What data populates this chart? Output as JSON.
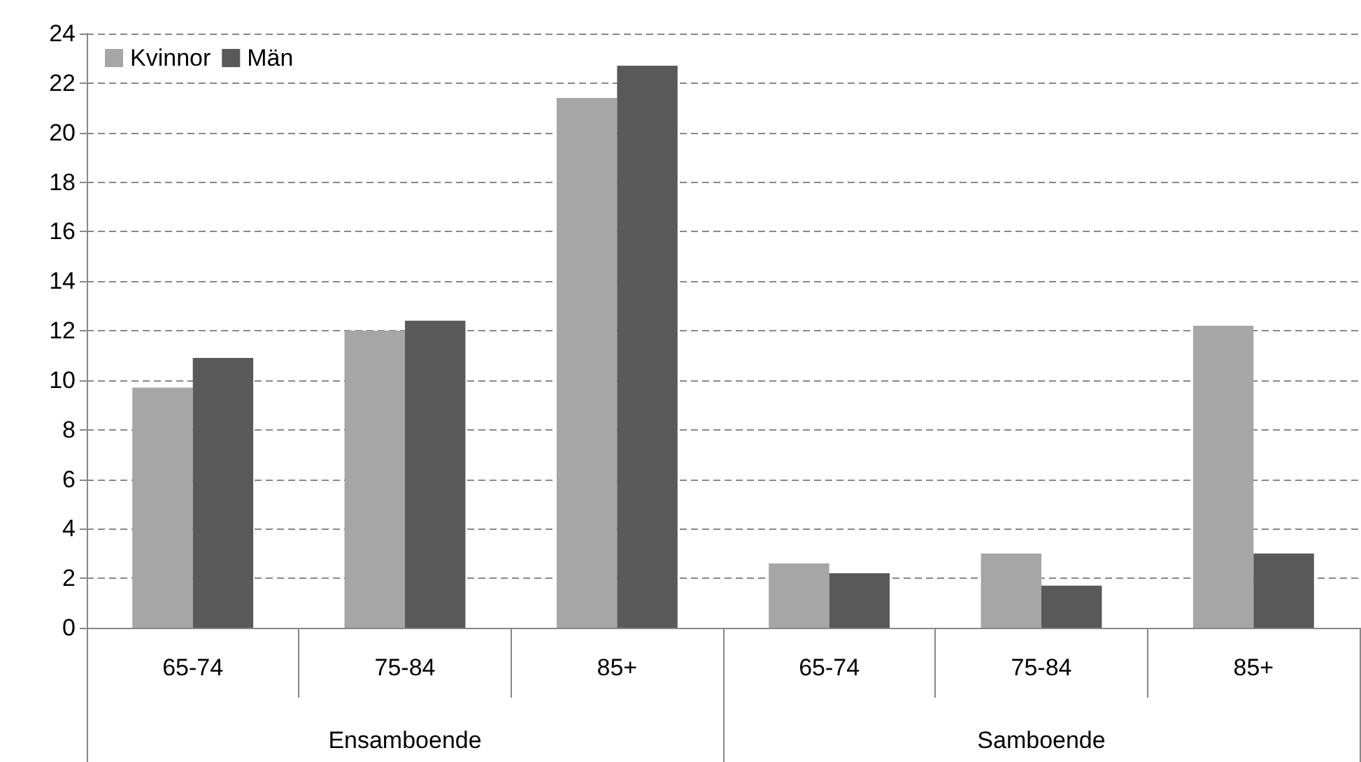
{
  "chart_data": {
    "type": "bar",
    "categories": [
      "65-74",
      "75-84",
      "85+",
      "65-74",
      "75-84",
      "85+"
    ],
    "series": [
      {
        "name": "Kvinnor",
        "color": "#a6a6a6",
        "values": [
          9.7,
          12.0,
          21.4,
          2.6,
          3.0,
          12.2
        ]
      },
      {
        "name": "Män",
        "color": "#595959",
        "values": [
          10.9,
          12.4,
          22.7,
          2.2,
          1.7,
          3.0
        ]
      }
    ],
    "annotations": [
      "Ensamboende",
      "Samboende"
    ],
    "ylim": [
      0,
      24
    ],
    "yticks": [
      0,
      2,
      4,
      6,
      8,
      10,
      12,
      14,
      16,
      18,
      20,
      22,
      24
    ],
    "grid": "y",
    "legend": "top left"
  }
}
